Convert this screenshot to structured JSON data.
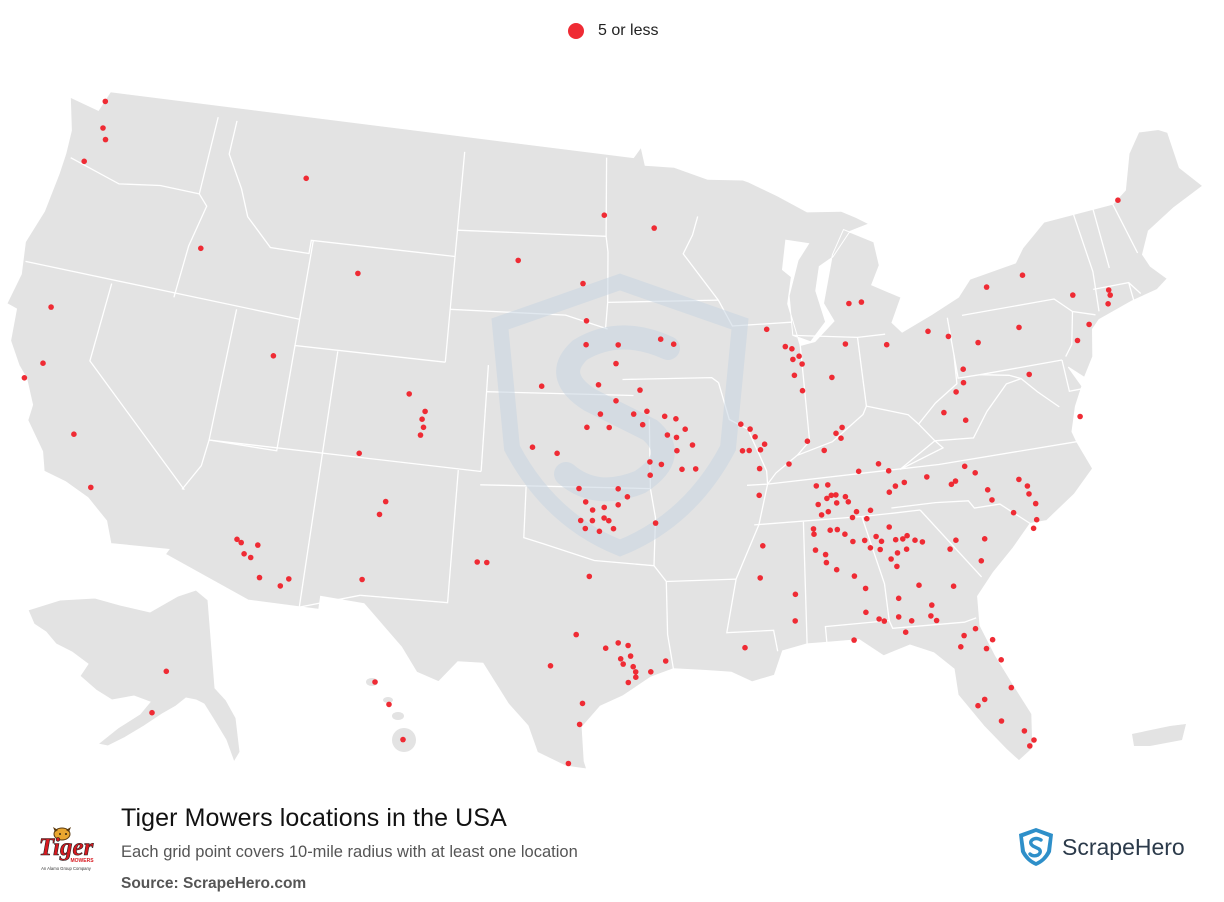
{
  "legend": {
    "label": "5 or less",
    "color": "#ef2b34"
  },
  "footer": {
    "title": "Tiger Mowers locations in the USA",
    "subtitle": "Each grid point covers 10-mile radius with at least one location",
    "source": "Source: ScrapeHero.com"
  },
  "brand_logo": {
    "name": "Tiger",
    "sub": "MOWERS",
    "tagline": "An Alamo Group Company"
  },
  "scrapehero": {
    "name": "ScrapeHero"
  },
  "colors": {
    "land": "#e3e3e3",
    "border": "#ffffff",
    "marker": "#ef2b34",
    "watermark": "#c9d6e2"
  },
  "markers": [
    [
      -122.6,
      47.6
    ],
    [
      -122.9,
      48.6
    ],
    [
      -122.3,
      47.2
    ],
    [
      -123.0,
      46.2
    ],
    [
      -116.3,
      44.0
    ],
    [
      -111.9,
      47.3
    ],
    [
      -122.4,
      40.6
    ],
    [
      -122.0,
      38.5
    ],
    [
      -122.6,
      37.8
    ],
    [
      -119.8,
      36.2
    ],
    [
      -118.5,
      34.4
    ],
    [
      -111.9,
      40.5
    ],
    [
      -112.0,
      33.5
    ],
    [
      -111.8,
      33.4
    ],
    [
      -111.1,
      33.4
    ],
    [
      -111.6,
      33.0
    ],
    [
      -111.3,
      32.9
    ],
    [
      -110.8,
      32.2
    ],
    [
      -109.9,
      32.0
    ],
    [
      -109.6,
      32.3
    ],
    [
      -106.2,
      35.1
    ],
    [
      -106.0,
      35.6
    ],
    [
      -106.6,
      32.6
    ],
    [
      -107.4,
      37.3
    ],
    [
      -105.5,
      39.7
    ],
    [
      -104.8,
      38.8
    ],
    [
      -104.7,
      38.5
    ],
    [
      -104.8,
      38.2
    ],
    [
      -104.7,
      39.1
    ],
    [
      -108.6,
      44.0
    ],
    [
      -100.9,
      45.0
    ],
    [
      -97.7,
      44.2
    ],
    [
      -96.7,
      46.8
    ],
    [
      -94.2,
      46.3
    ],
    [
      -97.5,
      42.8
    ],
    [
      -97.5,
      41.9
    ],
    [
      -94.0,
      42.1
    ],
    [
      -96.0,
      41.9
    ],
    [
      -96.1,
      41.2
    ],
    [
      -93.4,
      41.9
    ],
    [
      -99.5,
      40.3
    ],
    [
      -96.9,
      40.4
    ],
    [
      -95.0,
      40.2
    ],
    [
      -96.1,
      39.8
    ],
    [
      -96.8,
      39.3
    ],
    [
      -95.3,
      39.3
    ],
    [
      -94.7,
      39.4
    ],
    [
      -97.4,
      38.8
    ],
    [
      -96.4,
      38.8
    ],
    [
      -94.9,
      38.9
    ],
    [
      -93.9,
      39.2
    ],
    [
      -93.4,
      39.1
    ],
    [
      -93.0,
      38.7
    ],
    [
      -93.8,
      38.5
    ],
    [
      -93.4,
      38.4
    ],
    [
      -92.7,
      38.1
    ],
    [
      -93.4,
      37.9
    ],
    [
      -94.6,
      37.5
    ],
    [
      -94.1,
      37.4
    ],
    [
      -93.2,
      37.2
    ],
    [
      -92.6,
      37.2
    ],
    [
      -94.6,
      37.0
    ],
    [
      -99.8,
      38.0
    ],
    [
      -98.7,
      37.8
    ],
    [
      -97.7,
      36.5
    ],
    [
      -96.0,
      36.5
    ],
    [
      -95.6,
      36.2
    ],
    [
      -97.4,
      36.0
    ],
    [
      -96.0,
      35.9
    ],
    [
      -96.6,
      35.8
    ],
    [
      -97.1,
      35.7
    ],
    [
      -96.4,
      35.3
    ],
    [
      -97.1,
      35.3
    ],
    [
      -96.6,
      35.4
    ],
    [
      -97.6,
      35.3
    ],
    [
      -97.4,
      35.0
    ],
    [
      -96.2,
      35.0
    ],
    [
      -96.8,
      34.9
    ],
    [
      -94.4,
      35.2
    ],
    [
      -101.9,
      33.6
    ],
    [
      -101.5,
      33.6
    ],
    [
      -97.2,
      33.2
    ],
    [
      -97.7,
      31.0
    ],
    [
      -96.0,
      30.7
    ],
    [
      -96.5,
      30.5
    ],
    [
      -95.6,
      30.6
    ],
    [
      -95.5,
      30.2
    ],
    [
      -95.9,
      30.1
    ],
    [
      -95.8,
      29.9
    ],
    [
      -95.4,
      29.8
    ],
    [
      -95.3,
      29.6
    ],
    [
      -94.7,
      29.6
    ],
    [
      -95.3,
      29.4
    ],
    [
      -95.6,
      29.2
    ],
    [
      -98.7,
      29.8
    ],
    [
      -97.4,
      28.4
    ],
    [
      -97.5,
      27.6
    ],
    [
      -97.9,
      26.1
    ],
    [
      -90.5,
      38.8
    ],
    [
      -90.1,
      38.6
    ],
    [
      -89.9,
      38.3
    ],
    [
      -89.5,
      38.0
    ],
    [
      -89.7,
      37.8
    ],
    [
      -90.2,
      37.8
    ],
    [
      -90.5,
      37.8
    ],
    [
      -89.8,
      37.1
    ],
    [
      -89.0,
      42.3
    ],
    [
      -88.2,
      41.6
    ],
    [
      -87.9,
      41.5
    ],
    [
      -87.9,
      41.1
    ],
    [
      -87.6,
      41.2
    ],
    [
      -87.5,
      40.9
    ],
    [
      -87.9,
      40.5
    ],
    [
      -87.6,
      39.9
    ],
    [
      -86.2,
      40.3
    ],
    [
      -85.4,
      41.5
    ],
    [
      -86.9,
      37.6
    ],
    [
      -86.1,
      38.0
    ],
    [
      -86.3,
      38.2
    ],
    [
      -86.0,
      38.4
    ],
    [
      -85.0,
      43.0
    ],
    [
      -84.4,
      43.0
    ],
    [
      -83.5,
      41.3
    ],
    [
      -81.5,
      41.6
    ],
    [
      -80.6,
      41.3
    ],
    [
      -80.2,
      40.0
    ],
    [
      -80.3,
      39.5
    ],
    [
      -80.7,
      39.2
    ],
    [
      -81.4,
      38.5
    ],
    [
      -80.5,
      38.1
    ],
    [
      -79.3,
      40.9
    ],
    [
      -78.4,
      42.9
    ],
    [
      -76.6,
      43.1
    ],
    [
      -74.5,
      42.0
    ],
    [
      -77.3,
      41.2
    ],
    [
      -77.3,
      39.4
    ],
    [
      -74.8,
      40.3
    ],
    [
      -74.1,
      40.8
    ],
    [
      -73.0,
      41.4
    ],
    [
      -72.8,
      41.7
    ],
    [
      -72.8,
      41.9
    ],
    [
      -71.2,
      45.1
    ],
    [
      -75.5,
      37.5
    ],
    [
      -80.9,
      36.4
    ],
    [
      -80.5,
      36.1
    ],
    [
      -81.4,
      35.9
    ],
    [
      -81.6,
      35.8
    ],
    [
      -80.1,
      35.4
    ],
    [
      -80.0,
      35.0
    ],
    [
      -78.7,
      35.6
    ],
    [
      -78.4,
      35.3
    ],
    [
      -78.4,
      35.0
    ],
    [
      -78.2,
      34.6
    ],
    [
      -79.2,
      34.4
    ],
    [
      -78.5,
      33.7
    ],
    [
      -78.3,
      34.0
    ],
    [
      -80.6,
      33.6
    ],
    [
      -80.9,
      32.8
    ],
    [
      -81.8,
      33.7
    ],
    [
      -82.1,
      33.4
    ],
    [
      -82.2,
      32.0
    ],
    [
      -87.4,
      36.3
    ],
    [
      -86.9,
      36.3
    ],
    [
      -86.8,
      35.9
    ],
    [
      -87.0,
      35.8
    ],
    [
      -86.6,
      35.9
    ],
    [
      -86.2,
      35.8
    ],
    [
      -86.6,
      35.6
    ],
    [
      -87.4,
      35.6
    ],
    [
      -86.1,
      35.6
    ],
    [
      -87.0,
      35.3
    ],
    [
      -85.8,
      35.2
    ],
    [
      -87.3,
      35.2
    ],
    [
      -85.2,
      35.2
    ],
    [
      -86.0,
      35.0
    ],
    [
      -85.4,
      34.9
    ],
    [
      -84.3,
      35.8
    ],
    [
      -84.0,
      36.0
    ],
    [
      -83.6,
      36.1
    ],
    [
      -82.6,
      36.2
    ],
    [
      -87.7,
      34.7
    ],
    [
      -87.0,
      34.6
    ],
    [
      -87.7,
      34.5
    ],
    [
      -86.7,
      34.6
    ],
    [
      -86.4,
      34.4
    ],
    [
      -86.1,
      34.1
    ],
    [
      -85.6,
      34.1
    ],
    [
      -85.1,
      34.2
    ],
    [
      -84.5,
      34.5
    ],
    [
      -84.9,
      34.0
    ],
    [
      -84.3,
      34.0
    ],
    [
      -83.8,
      34.1
    ],
    [
      -84.0,
      34.0
    ],
    [
      -83.9,
      33.6
    ],
    [
      -83.5,
      33.9
    ],
    [
      -83.2,
      33.8
    ],
    [
      -84.3,
      33.5
    ],
    [
      -84.6,
      33.3
    ],
    [
      -85.0,
      33.7
    ],
    [
      -85.4,
      33.8
    ],
    [
      -84.4,
      33.0
    ],
    [
      -87.7,
      33.9
    ],
    [
      -87.3,
      33.7
    ],
    [
      -87.3,
      33.4
    ],
    [
      -86.9,
      33.1
    ],
    [
      -86.2,
      32.8
    ],
    [
      -85.8,
      32.3
    ],
    [
      -84.5,
      31.8
    ],
    [
      -83.6,
      32.2
    ],
    [
      -83.2,
      31.4
    ],
    [
      -83.3,
      31.0
    ],
    [
      -84.1,
      30.9
    ],
    [
      -86.5,
      30.4
    ],
    [
      -84.4,
      30.5
    ],
    [
      -85.9,
      31.4
    ],
    [
      -85.4,
      31.1
    ],
    [
      -85.2,
      31.0
    ],
    [
      -84.6,
      31.1
    ],
    [
      -83.1,
      30.8
    ],
    [
      -81.6,
      30.3
    ],
    [
      -82.1,
      30.1
    ],
    [
      -82.3,
      29.7
    ],
    [
      -81.3,
      29.5
    ],
    [
      -81.0,
      29.8
    ],
    [
      -80.8,
      29.0
    ],
    [
      -80.6,
      27.9
    ],
    [
      -81.7,
      27.6
    ],
    [
      -82.0,
      27.4
    ],
    [
      -81.2,
      26.7
    ],
    [
      -80.4,
      26.2
    ],
    [
      -80.3,
      25.6
    ],
    [
      -80.1,
      25.8
    ],
    [
      -88.7,
      32.3
    ],
    [
      -90.9,
      30.4
    ],
    [
      -94.1,
      30.0
    ],
    [
      -89.9,
      36.1
    ],
    [
      -89.9,
      34.2
    ],
    [
      -90.1,
      33.0
    ],
    [
      -88.8,
      31.3
    ],
    [
      -85.5,
      36.7
    ],
    [
      -84.6,
      36.9
    ],
    [
      -84.2,
      36.6
    ],
    [
      -87.6,
      38.0
    ],
    [
      -88.5,
      37.2
    ]
  ],
  "extra_markers": [
    {
      "region": "alaska",
      "lon": -147.7,
      "lat": 64.8
    },
    {
      "region": "alaska",
      "lon": -150.0,
      "lat": 61.2
    },
    {
      "region": "hawaii",
      "lon": -157.9,
      "lat": 21.5
    },
    {
      "region": "hawaii",
      "lon": -156.5,
      "lat": 20.8
    },
    {
      "region": "hawaii",
      "lon": -155.1,
      "lat": 19.7
    }
  ]
}
